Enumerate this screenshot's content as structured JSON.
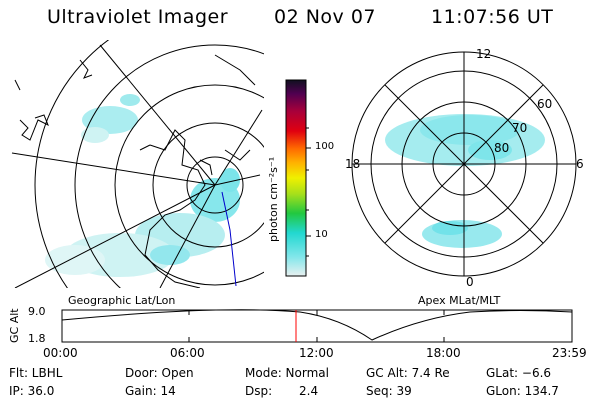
{
  "header": {
    "instrument": "Ultraviolet Imager",
    "date": "02 Nov 07",
    "time": "11:07:56 UT"
  },
  "panels": {
    "left_caption": "Geographic Lat/Lon",
    "right_caption": "Apex MLat/MLT"
  },
  "polar": {
    "mlt_labels": {
      "top": "12",
      "left": "18",
      "right": "6",
      "bottom": "0"
    },
    "lat_labels": [
      "60",
      "70",
      "80"
    ]
  },
  "colorbar": {
    "unit_label": "photon cm⁻²s⁻¹",
    "ticks": [
      "100",
      "10"
    ]
  },
  "altitude_plot": {
    "ylabel": "GC Alt",
    "yticks": [
      "9.0",
      "1.8"
    ],
    "xticks": [
      "00:00",
      "06:00",
      "12:00",
      "18:00",
      "23:59"
    ]
  },
  "status": {
    "filter": "Flt: LBHL",
    "ip": "IP: 36.0",
    "door": "Door: Open",
    "gain": "Gain: 14",
    "mode": "Mode: Normal",
    "dsp_label": "Dsp:",
    "dsp_value": "2.4",
    "gc_alt": "GC Alt: 7.4 Re",
    "seq": "Seq: 39",
    "glat": "GLat: −6.6",
    "glon": "GLon: 134.7"
  },
  "colors": {
    "aurora": "#4fe3ea",
    "cursor": "#ff0000",
    "track": "#0000cc"
  }
}
